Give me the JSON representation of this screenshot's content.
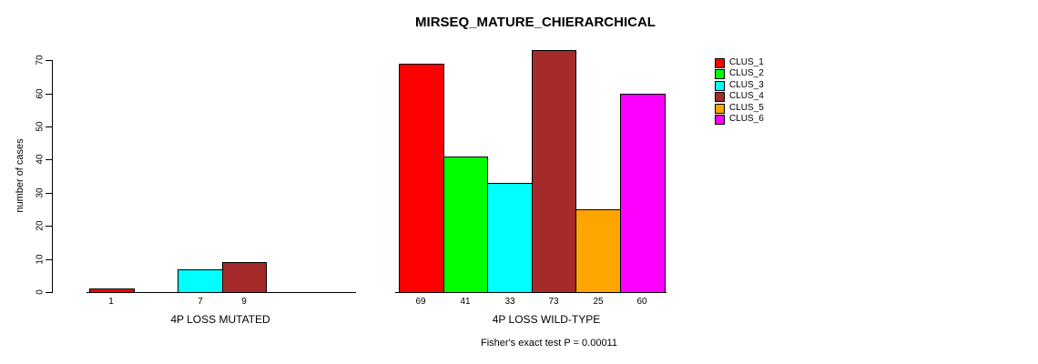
{
  "chart_data": {
    "type": "bar",
    "title": "MIRSEQ_MATURE_CHIERARCHICAL",
    "ylabel": "number of cases",
    "xlabel": "",
    "annotation": "Fisher's exact test P = 0.00011",
    "categories": [
      "4P LOSS MUTATED",
      "4P LOSS WILD-TYPE"
    ],
    "yticks": [
      0,
      10,
      20,
      30,
      40,
      50,
      60,
      70
    ],
    "ylim": [
      0,
      73
    ],
    "grid": false,
    "legend_position": "top-right",
    "series": [
      {
        "name": "CLUS_1",
        "color": "#FF0000",
        "values": [
          1,
          69
        ]
      },
      {
        "name": "CLUS_2",
        "color": "#00FF00",
        "values": [
          0,
          41
        ]
      },
      {
        "name": "CLUS_3",
        "color": "#00FFFF",
        "values": [
          7,
          33
        ]
      },
      {
        "name": "CLUS_4",
        "color": "#A52A2A",
        "values": [
          9,
          73
        ]
      },
      {
        "name": "CLUS_5",
        "color": "#FFA500",
        "values": [
          0,
          25
        ]
      },
      {
        "name": "CLUS_6",
        "color": "#FF00FF",
        "values": [
          0,
          60
        ]
      }
    ]
  }
}
